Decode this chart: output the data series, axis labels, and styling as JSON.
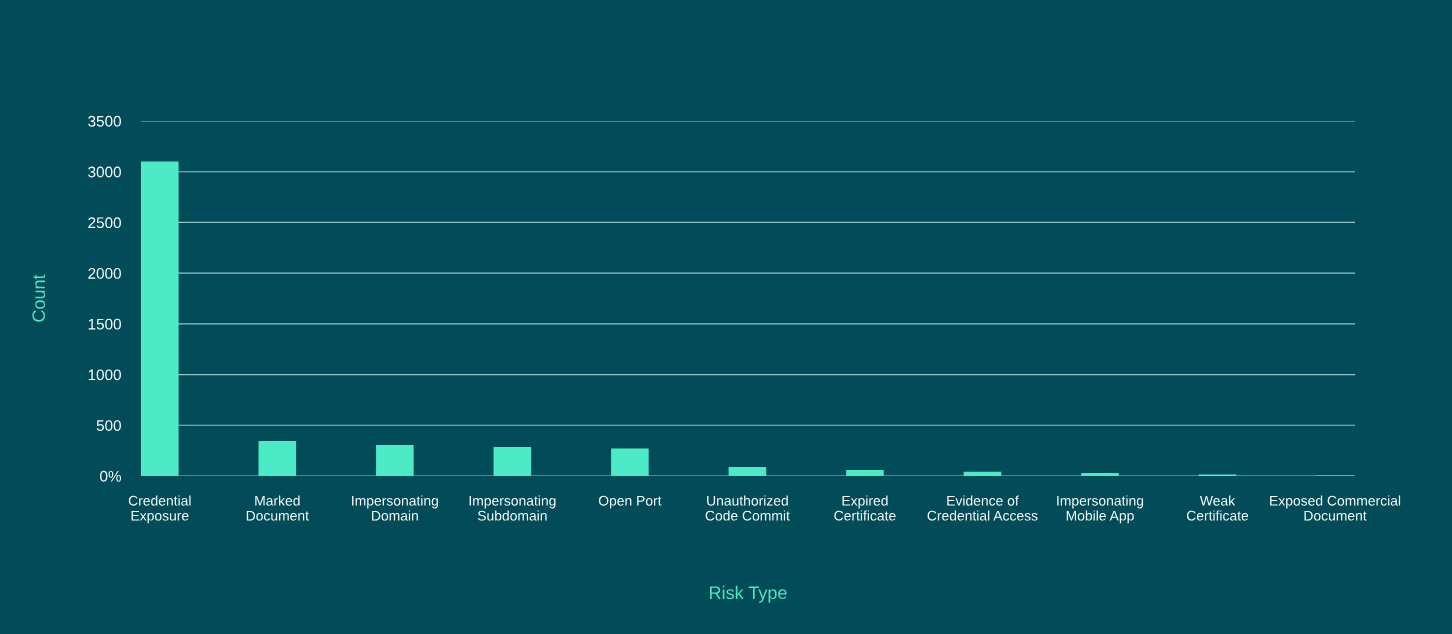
{
  "chart_data": {
    "type": "bar",
    "xlabel": "Risk Type",
    "ylabel": "Count",
    "categories": [
      "Credential\nExposure",
      "Marked\nDocument",
      "Impersonating\nDomain",
      "Impersonating\nSubdomain",
      "Open Port",
      "Unauthorized\nCode Commit",
      "Expired\nCertificate",
      "Evidence of\nCredential Access",
      "Impersonating\nMobile App",
      "Weak\nCertificate",
      "Exposed Commercial\nDocument"
    ],
    "values": [
      3100,
      345,
      305,
      285,
      270,
      88,
      58,
      42,
      30,
      15,
      5
    ],
    "color": "#4cebc6",
    "ylim": [
      0,
      3500
    ],
    "yticks": [
      {
        "value": 0,
        "label": "0%"
      },
      500,
      1000,
      1500,
      2000,
      2500,
      3000,
      3500
    ],
    "grid": "y"
  }
}
